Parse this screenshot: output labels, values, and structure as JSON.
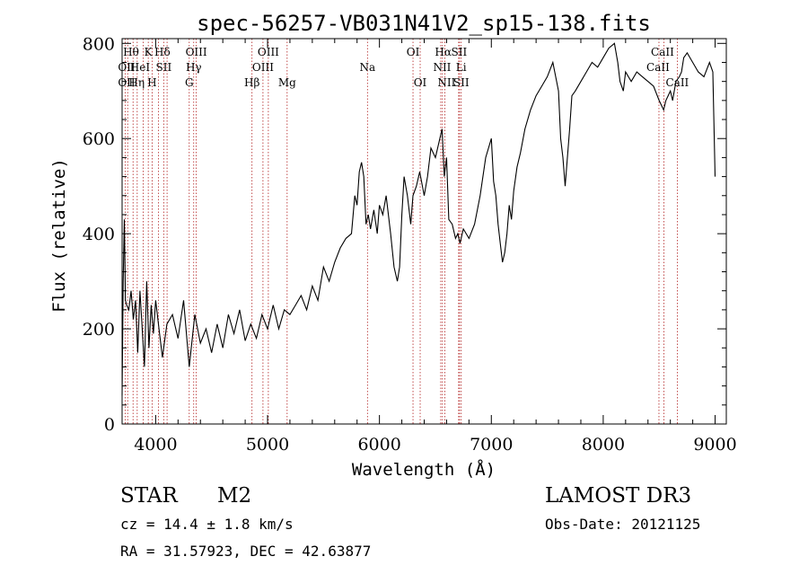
{
  "header": {
    "title": "spec-56257-VB031N41V2_sp15-138.fits"
  },
  "info": {
    "class_label": "STAR",
    "subclass_label": "M2",
    "survey": "LAMOST DR3",
    "cz": "cz = 14.4 ± 1.8 km/s",
    "obs_date": "Obs-Date: 20121125",
    "coords": "RA =  31.57923, DEC =  42.63877"
  },
  "colors": {
    "line_marker": "#b22222",
    "spectrum": "#000000",
    "axes": "#000000"
  },
  "chart_data": {
    "type": "line",
    "title": "spec-56257-VB031N41V2_sp15-138.fits",
    "xlabel": "Wavelength (Å)",
    "ylabel": "Flux (relative)",
    "xlim": [
      3700,
      9100
    ],
    "ylim": [
      0,
      810
    ],
    "grid": false,
    "legend": "none",
    "x_ticks": [
      4000,
      5000,
      6000,
      7000,
      8000,
      9000
    ],
    "y_ticks": [
      0,
      200,
      400,
      600,
      800
    ],
    "series": [
      {
        "x": [
          3700,
          3710,
          3720,
          3730,
          3740,
          3760,
          3780,
          3800,
          3820,
          3840,
          3860,
          3880,
          3900,
          3920,
          3940,
          3960,
          3980,
          4000,
          4030,
          4060,
          4100,
          4150,
          4200,
          4250,
          4300,
          4350,
          4400,
          4450,
          4500,
          4550,
          4600,
          4650,
          4700,
          4750,
          4800,
          4850,
          4900,
          4950,
          5000,
          5050,
          5100,
          5150,
          5200,
          5250,
          5300,
          5350,
          5400,
          5450,
          5500,
          5550,
          5600,
          5650,
          5700,
          5750,
          5780,
          5800,
          5820,
          5840,
          5860,
          5880,
          5900,
          5920,
          5950,
          5980,
          6000,
          6030,
          6060,
          6100,
          6130,
          6160,
          6180,
          6200,
          6220,
          6250,
          6280,
          6300,
          6330,
          6360,
          6400,
          6430,
          6460,
          6500,
          6530,
          6560,
          6580,
          6600,
          6620,
          6650,
          6680,
          6700,
          6720,
          6750,
          6800,
          6850,
          6900,
          6950,
          7000,
          7020,
          7040,
          7060,
          7080,
          7100,
          7120,
          7140,
          7160,
          7180,
          7200,
          7230,
          7260,
          7300,
          7350,
          7400,
          7450,
          7500,
          7550,
          7600,
          7620,
          7640,
          7660,
          7680,
          7700,
          7720,
          7750,
          7800,
          7850,
          7900,
          7950,
          8000,
          8050,
          8100,
          8130,
          8150,
          8180,
          8200,
          8250,
          8300,
          8350,
          8400,
          8450,
          8500,
          8520,
          8540,
          8560,
          8580,
          8600,
          8620,
          8650,
          8680,
          8700,
          8720,
          8750,
          8800,
          8850,
          8900,
          8950,
          8980,
          9000
        ],
        "values": [
          60,
          300,
          430,
          260,
          250,
          240,
          280,
          220,
          260,
          150,
          280,
          200,
          120,
          300,
          160,
          250,
          190,
          260,
          200,
          140,
          210,
          230,
          180,
          260,
          120,
          230,
          170,
          200,
          150,
          210,
          160,
          230,
          190,
          240,
          175,
          210,
          180,
          230,
          200,
          250,
          200,
          240,
          230,
          250,
          270,
          240,
          290,
          260,
          330,
          300,
          340,
          370,
          390,
          400,
          480,
          460,
          530,
          550,
          520,
          420,
          440,
          410,
          450,
          400,
          460,
          440,
          480,
          400,
          330,
          300,
          330,
          440,
          520,
          480,
          420,
          480,
          500,
          530,
          480,
          520,
          580,
          560,
          590,
          620,
          520,
          560,
          430,
          420,
          390,
          400,
          380,
          410,
          390,
          420,
          480,
          560,
          600,
          510,
          480,
          420,
          380,
          340,
          360,
          400,
          460,
          430,
          490,
          540,
          570,
          620,
          660,
          690,
          710,
          730,
          760,
          700,
          600,
          560,
          500,
          560,
          620,
          690,
          700,
          720,
          740,
          760,
          750,
          770,
          790,
          800,
          760,
          720,
          700,
          740,
          720,
          740,
          730,
          720,
          710,
          680,
          670,
          660,
          680,
          690,
          700,
          680,
          720,
          730,
          740,
          770,
          780,
          760,
          740,
          730,
          760,
          740,
          520
        ]
      }
    ],
    "line_marker_wavelengths": [
      3727,
      3750,
      3798,
      3835,
      3889,
      3934,
      3968,
      4026,
      4072,
      4102,
      4300,
      4340,
      4363,
      4861,
      4959,
      5007,
      5175,
      5893,
      6300,
      6364,
      6548,
      6563,
      6584,
      6708,
      6716,
      6731,
      8498,
      8542,
      8662
    ],
    "line_labels": [
      {
        "text": "Hθ",
        "x": 3780,
        "row": 0
      },
      {
        "text": "K",
        "x": 3934,
        "row": 0
      },
      {
        "text": "Hδ",
        "x": 4060,
        "row": 0
      },
      {
        "text": "OIII",
        "x": 4363,
        "row": 0
      },
      {
        "text": "OIII",
        "x": 5007,
        "row": 0
      },
      {
        "text": "OI",
        "x": 6300,
        "row": 0
      },
      {
        "text": "Hα",
        "x": 6570,
        "row": 0
      },
      {
        "text": "SII",
        "x": 6712,
        "row": 0
      },
      {
        "text": "CaII",
        "x": 8530,
        "row": 0
      },
      {
        "text": "OII",
        "x": 3740,
        "row": 1
      },
      {
        "text": "HeI",
        "x": 3860,
        "row": 1
      },
      {
        "text": "SII",
        "x": 4072,
        "row": 1
      },
      {
        "text": "Hγ",
        "x": 4340,
        "row": 1
      },
      {
        "text": "OIII",
        "x": 4959,
        "row": 1
      },
      {
        "text": "Na",
        "x": 5893,
        "row": 1
      },
      {
        "text": "NII",
        "x": 6560,
        "row": 1
      },
      {
        "text": "Li",
        "x": 6730,
        "row": 1
      },
      {
        "text": "CaII",
        "x": 8490,
        "row": 1
      },
      {
        "text": "OII",
        "x": 3740,
        "row": 2
      },
      {
        "text": "Hη",
        "x": 3830,
        "row": 2
      },
      {
        "text": "H",
        "x": 3968,
        "row": 2
      },
      {
        "text": "G",
        "x": 4300,
        "row": 2
      },
      {
        "text": "Hβ",
        "x": 4861,
        "row": 2
      },
      {
        "text": "Mg",
        "x": 5175,
        "row": 2
      },
      {
        "text": "OI",
        "x": 6364,
        "row": 2
      },
      {
        "text": "NII",
        "x": 6600,
        "row": 2
      },
      {
        "text": "SII",
        "x": 6731,
        "row": 2
      },
      {
        "text": "CaII",
        "x": 8662,
        "row": 2
      }
    ]
  }
}
